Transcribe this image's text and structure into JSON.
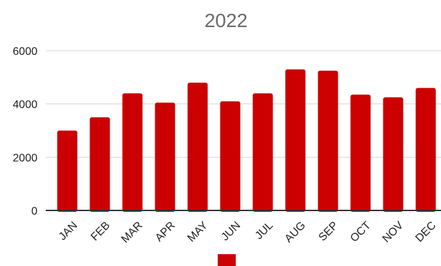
{
  "chart_data": {
    "type": "bar",
    "title": "2022",
    "xlabel": "",
    "ylabel": "",
    "categories": [
      "JAN",
      "FEB",
      "MAR",
      "APR",
      "MAY",
      "JUN",
      "JUL",
      "AUG",
      "SEP",
      "OCT",
      "NOV",
      "DEC"
    ],
    "values": [
      3000,
      3500,
      4400,
      4050,
      4800,
      4100,
      4400,
      5300,
      5250,
      4350,
      4250,
      4600
    ],
    "ylim": [
      0,
      6000
    ],
    "yticks": [
      "0",
      "2000",
      "4000",
      "6000"
    ],
    "grid": true,
    "legend": "bottom",
    "bar_color": "#cc0000"
  }
}
